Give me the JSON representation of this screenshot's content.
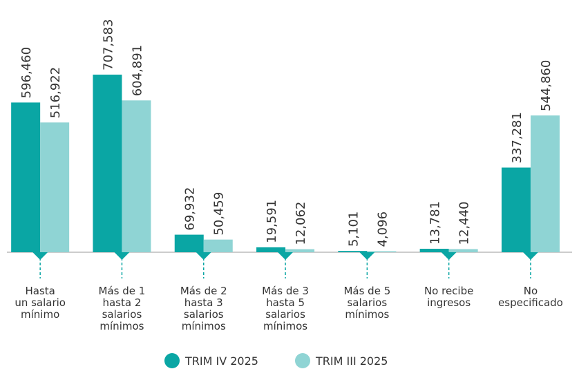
{
  "chart_data": {
    "type": "bar",
    "categories": [
      "Hasta\nun salario\nmínimo",
      "Más de 1\nhasta 2\nsalarios\nmínimos",
      "Más de 2\nhasta 3\nsalarios\nmínimos",
      "Más de 3\nhasta 5\nsalarios\nmínimos",
      "Más de 5\nsalarios\nmínimos",
      "No recibe\ningresos",
      "No\nespecificado"
    ],
    "series": [
      {
        "name": "TRIM IV 2025",
        "color": "#0aa6a4",
        "values": [
          596460,
          707583,
          69932,
          19591,
          5101,
          13781,
          337281
        ],
        "value_labels": [
          "596,460",
          "707,583",
          "69,932",
          "19,591",
          "5,101",
          "13,781",
          "337,281"
        ]
      },
      {
        "name": "TRIM III 2025",
        "color": "#8fd4d4",
        "values": [
          516922,
          604891,
          50459,
          12062,
          4096,
          12440,
          544860
        ],
        "value_labels": [
          "516,922",
          "604,891",
          "50,459",
          "12,062",
          "4,096",
          "12,440",
          "544,860"
        ]
      }
    ],
    "legend": "bottom"
  }
}
